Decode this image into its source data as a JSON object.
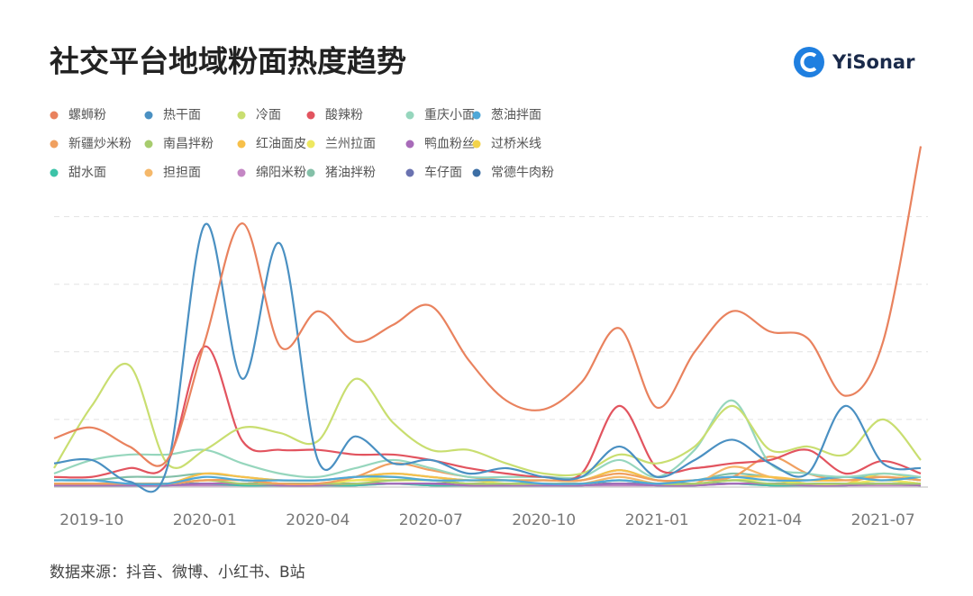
{
  "brand": "YiSonar",
  "chart_data": {
    "type": "line",
    "title": "社交平台地域粉面热度趋势",
    "note": "数据来源：抖音、微博、小红书、B站",
    "categories": [
      null,
      "2019-10",
      null,
      null,
      "2020-01",
      null,
      null,
      "2020-04",
      null,
      null,
      "2020-07",
      null,
      null,
      "2020-10",
      null,
      null,
      "2021-01",
      null,
      null,
      "2021-04",
      null,
      null,
      "2021-07",
      null
    ],
    "ylim": [
      0,
      102
    ],
    "yticks": [
      0,
      20,
      40,
      60,
      80
    ],
    "grid": true,
    "series": [
      {
        "name": "螺蛳粉",
        "color": "#e9825e",
        "values": [
          14.4,
          17.6,
          12,
          8,
          43,
          78,
          41.6,
          52,
          43,
          48,
          53.6,
          37.6,
          25.6,
          23,
          31,
          47,
          23.5,
          40,
          52,
          46,
          44,
          27,
          43,
          100.8
        ]
      },
      {
        "name": "热干面",
        "color": "#4a90c2",
        "values": [
          7,
          8,
          1.6,
          5.6,
          77.6,
          32,
          72,
          8,
          15,
          7,
          8,
          4,
          5.6,
          3,
          3,
          12,
          3,
          8,
          14,
          7,
          4,
          24,
          7,
          5.6
        ]
      },
      {
        "name": "冷面",
        "color": "#c9de70",
        "values": [
          5.6,
          24,
          36,
          7,
          11,
          17.6,
          16,
          13.6,
          32,
          19,
          11,
          11,
          7,
          4,
          4,
          9.6,
          7,
          12,
          24,
          11,
          12,
          9.6,
          20,
          8
        ]
      },
      {
        "name": "酸辣粉",
        "color": "#e2545f",
        "values": [
          3,
          3,
          5.6,
          7,
          41.6,
          13.6,
          11,
          11,
          9.6,
          9.6,
          8,
          5.6,
          4,
          3,
          4,
          24,
          5.6,
          5.6,
          7,
          8,
          11,
          4,
          7.7,
          4
        ]
      },
      {
        "name": "重庆小面",
        "color": "#96d6bd",
        "values": [
          4,
          8,
          9.6,
          9.6,
          11,
          7,
          4,
          3,
          5.6,
          8,
          5.6,
          3,
          3,
          3,
          3,
          8,
          3,
          11,
          25.6,
          7,
          4,
          3,
          4,
          3
        ]
      },
      {
        "name": "葱油拌面",
        "color": "#4fa8d8",
        "values": [
          2,
          2,
          1,
          1,
          3,
          2,
          2,
          2,
          3,
          3,
          2,
          2,
          2,
          1,
          1,
          2,
          1,
          2,
          3,
          2,
          2,
          3,
          2,
          3
        ]
      },
      {
        "name": "新疆炒米粉",
        "color": "#f0a060",
        "values": [
          1,
          1,
          1,
          1,
          2,
          2,
          1,
          1,
          3,
          7,
          5,
          3,
          2,
          2,
          2,
          4,
          2,
          2,
          3,
          9,
          4,
          2,
          3,
          2
        ]
      },
      {
        "name": "南昌拌粉",
        "color": "#a7cc6e",
        "values": [
          1,
          1,
          1,
          1,
          2,
          1,
          1,
          1,
          1,
          2,
          2,
          1,
          1,
          1,
          1,
          2,
          1,
          1,
          2,
          1,
          1,
          1,
          1,
          1
        ]
      },
      {
        "name": "红油面皮",
        "color": "#f7c04a",
        "values": [
          1,
          1,
          1,
          1,
          4,
          3,
          2,
          2,
          3,
          4,
          3,
          2,
          2,
          2,
          2,
          5,
          2,
          2,
          3,
          3,
          2,
          2,
          3,
          2
        ]
      },
      {
        "name": "兰州拉面",
        "color": "#eee860",
        "values": [
          1,
          1,
          1,
          1,
          2,
          2,
          1,
          1,
          2,
          3,
          2,
          2,
          1,
          1,
          1,
          2,
          1,
          1,
          2,
          2,
          1,
          1,
          2,
          1
        ]
      },
      {
        "name": "鸭血粉丝",
        "color": "#a86bb9",
        "values": [
          0.5,
          0.5,
          0.5,
          0.5,
          1,
          1,
          0.5,
          0.5,
          1,
          1,
          1,
          0.5,
          0.5,
          0.5,
          0.5,
          1,
          0.5,
          0.5,
          1,
          1,
          0.5,
          0.5,
          1,
          0.5
        ]
      },
      {
        "name": "过桥米线",
        "color": "#f3d34a",
        "values": [
          1,
          1,
          1,
          1,
          2,
          2,
          1,
          1,
          2,
          2,
          2,
          1,
          1,
          1,
          1,
          2,
          1,
          1,
          2,
          2,
          1,
          1,
          4,
          2
        ]
      },
      {
        "name": "甜水面",
        "color": "#3cc3a8",
        "values": [
          0.5,
          0.5,
          0.5,
          0.5,
          1,
          0.5,
          0.5,
          0.5,
          0.5,
          1,
          0.5,
          0.5,
          0.5,
          0.5,
          0.5,
          1,
          0.5,
          0.5,
          1,
          0.5,
          0.5,
          0.5,
          1,
          0.5
        ]
      },
      {
        "name": "担担面",
        "color": "#f5b86a",
        "values": [
          1,
          1,
          1,
          1,
          2,
          2,
          1,
          1,
          2,
          2,
          2,
          1,
          1,
          1,
          1,
          3,
          1,
          1,
          6,
          3,
          1,
          1,
          2,
          1
        ]
      },
      {
        "name": "绵阳米粉",
        "color": "#c487c4",
        "values": [
          0.5,
          0.5,
          0.5,
          0.5,
          0.5,
          0.5,
          0.5,
          0.5,
          0.5,
          1,
          0.5,
          0.5,
          0.5,
          0.5,
          0.5,
          0.5,
          0.5,
          0.5,
          1,
          0.5,
          0.5,
          0.5,
          0.5,
          0.5
        ]
      },
      {
        "name": "猪油拌粉",
        "color": "#84c0a8",
        "values": [
          2,
          2,
          3,
          3,
          4,
          3,
          2,
          2,
          3,
          4,
          3,
          2,
          2,
          2,
          2,
          5,
          2,
          2,
          4,
          3,
          2,
          3,
          3,
          2
        ]
      },
      {
        "name": "车仔面",
        "color": "#6a72b0",
        "values": [
          1,
          1,
          1,
          1,
          1,
          1,
          1,
          1,
          1,
          1,
          1,
          1,
          1,
          1,
          1,
          1,
          1,
          1,
          1,
          1,
          1,
          1,
          1,
          1
        ]
      },
      {
        "name": "常德牛肉粉",
        "color": "#3d6fa5",
        "values": [
          1,
          1,
          1,
          1,
          1,
          1,
          1,
          1,
          1,
          1,
          1,
          1,
          1,
          1,
          1,
          1,
          1,
          1,
          1,
          1,
          1,
          1,
          1,
          1
        ]
      }
    ]
  }
}
